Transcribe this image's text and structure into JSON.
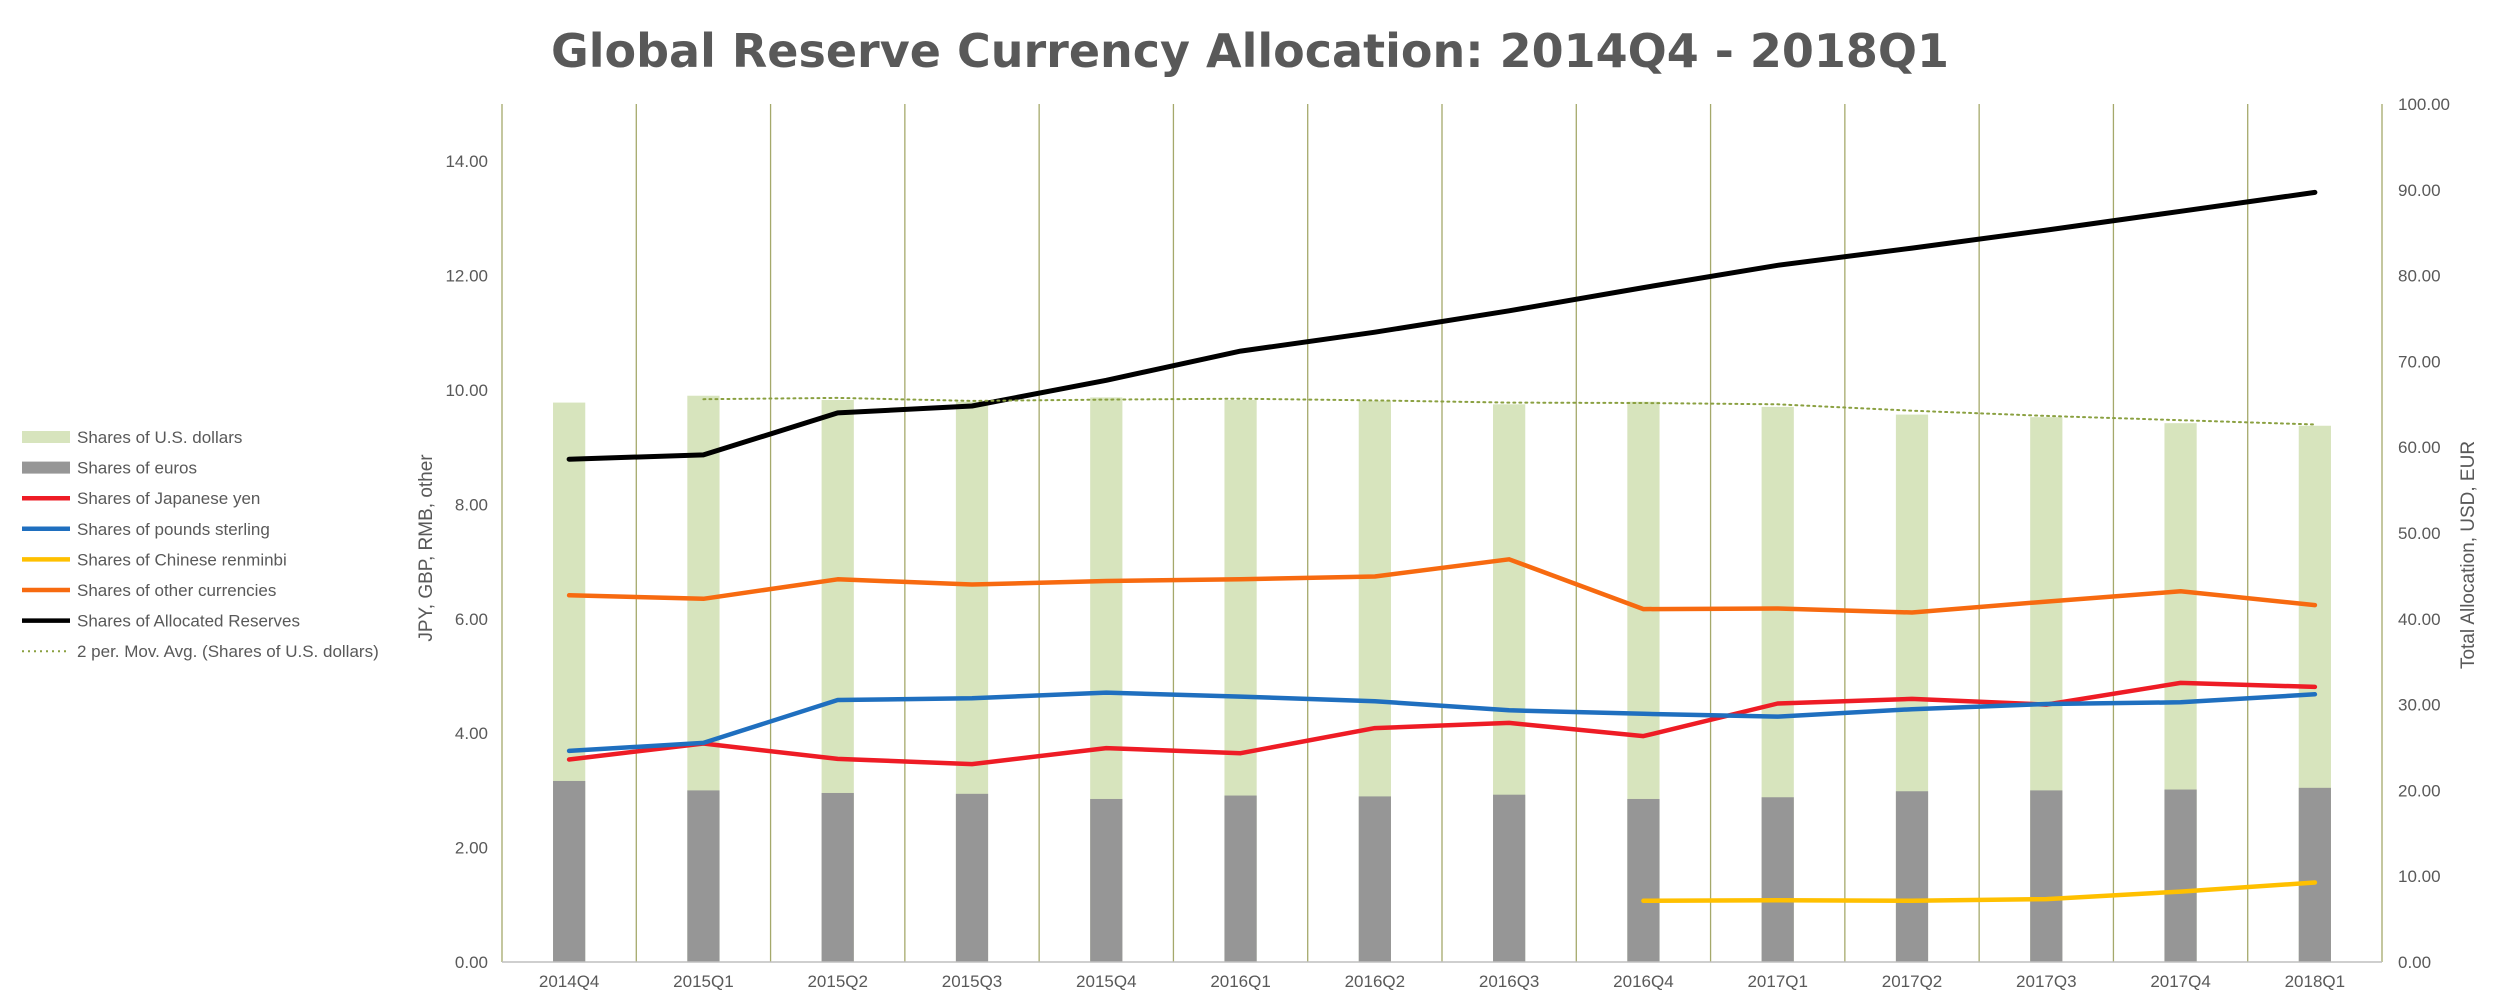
{
  "chart_data": {
    "type": "bar",
    "title": "Global Reserve Currency Allocation: 2014Q4 - 2018Q1",
    "categories": [
      "2014Q4",
      "2015Q1",
      "2015Q2",
      "2015Q3",
      "2015Q4",
      "2016Q1",
      "2016Q2",
      "2016Q3",
      "2016Q4",
      "2017Q1",
      "2017Q2",
      "2017Q3",
      "2017Q4",
      "2018Q1"
    ],
    "y_left": {
      "label": "JPY, GBP, RMB, other",
      "range": [
        0,
        15
      ],
      "ticks": [
        "0.00",
        "2.00",
        "4.00",
        "6.00",
        "8.00",
        "10.00",
        "12.00",
        "14.00"
      ]
    },
    "y_right": {
      "label": "Total Allocation, USD, EUR",
      "range": [
        0,
        100
      ],
      "ticks": [
        "0.00",
        "10.00",
        "20.00",
        "30.00",
        "40.00",
        "50.00",
        "60.00",
        "70.00",
        "80.00",
        "90.00",
        "100.00"
      ]
    },
    "grid": "vertical",
    "legend_position": "left",
    "series": [
      {
        "name": "Shares of U.S. dollars",
        "kind": "bar",
        "axis": "right",
        "color": "#d7e4bd",
        "values": [
          65.2,
          66.0,
          65.5,
          65.3,
          65.8,
          65.5,
          65.4,
          65.0,
          65.3,
          64.7,
          63.8,
          63.5,
          62.8,
          62.5
        ]
      },
      {
        "name": "Shares of euros",
        "kind": "bar",
        "axis": "right",
        "color": "#969696",
        "values": [
          21.1,
          20.0,
          19.7,
          19.6,
          19.0,
          19.4,
          19.3,
          19.5,
          19.0,
          19.2,
          19.9,
          20.0,
          20.1,
          20.3
        ]
      },
      {
        "name": "Shares of Japanese yen",
        "kind": "line",
        "axis": "left",
        "color": "#ee1c25",
        "values": [
          3.54,
          3.82,
          3.55,
          3.46,
          3.74,
          3.65,
          4.09,
          4.18,
          3.95,
          4.52,
          4.6,
          4.5,
          4.88,
          4.81
        ]
      },
      {
        "name": "Shares of pounds sterling",
        "kind": "line",
        "axis": "left",
        "color": "#1f6fbf",
        "values": [
          3.69,
          3.83,
          4.58,
          4.61,
          4.71,
          4.64,
          4.56,
          4.4,
          4.34,
          4.29,
          4.42,
          4.51,
          4.54,
          4.68
        ]
      },
      {
        "name": "Shares of Chinese renminbi",
        "kind": "line",
        "axis": "left",
        "color": "#ffc000",
        "values": [
          null,
          null,
          null,
          null,
          null,
          null,
          null,
          null,
          1.07,
          1.08,
          1.07,
          1.1,
          1.23,
          1.39
        ]
      },
      {
        "name": "Shares of other currencies",
        "kind": "line",
        "axis": "left",
        "color": "#f76a10",
        "values": [
          6.41,
          6.35,
          6.69,
          6.6,
          6.66,
          6.69,
          6.74,
          7.04,
          6.17,
          6.18,
          6.11,
          6.3,
          6.48,
          6.24
        ]
      },
      {
        "name": "Shares of Allocated Reserves",
        "kind": "line",
        "axis": "right",
        "color": "#000000",
        "values": [
          58.6,
          59.1,
          64.0,
          64.8,
          67.8,
          71.2,
          73.4,
          75.9,
          78.6,
          81.2,
          83.2,
          85.3,
          87.5,
          89.7
        ]
      },
      {
        "name": "2 per. Mov. Avg. (Shares of U.S. dollars)",
        "kind": "trend",
        "axis": "right",
        "color": "#8aa040",
        "values": [
          null,
          65.6,
          65.75,
          65.4,
          65.55,
          65.65,
          65.45,
          65.2,
          65.15,
          65.0,
          64.25,
          63.65,
          63.15,
          62.65
        ]
      }
    ]
  }
}
